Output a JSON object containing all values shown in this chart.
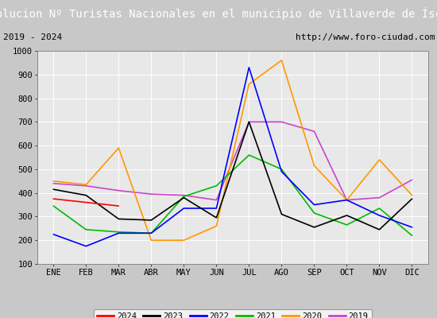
{
  "title": "Evolucion Nº Turistas Nacionales en el municipio de Villaverde de Íscar",
  "subtitle_left": "2019 - 2024",
  "subtitle_right": "http://www.foro-ciudad.com",
  "months": [
    "ENE",
    "FEB",
    "MAR",
    "ABR",
    "MAY",
    "JUN",
    "JUL",
    "AGO",
    "SEP",
    "OCT",
    "NOV",
    "DIC"
  ],
  "ylim": [
    100,
    1000
  ],
  "yticks": [
    100,
    200,
    300,
    400,
    500,
    600,
    700,
    800,
    900,
    1000
  ],
  "series": {
    "2024": {
      "color": "#ff0000",
      "values": [
        375,
        360,
        345,
        null,
        null,
        null,
        null,
        null,
        null,
        null,
        null,
        null
      ]
    },
    "2023": {
      "color": "#000000",
      "values": [
        415,
        390,
        290,
        285,
        380,
        295,
        700,
        310,
        255,
        305,
        245,
        375
      ]
    },
    "2022": {
      "color": "#0000ff",
      "values": [
        225,
        175,
        230,
        230,
        335,
        335,
        930,
        490,
        350,
        370,
        305,
        255
      ]
    },
    "2021": {
      "color": "#00bb00",
      "values": [
        345,
        245,
        235,
        230,
        385,
        430,
        560,
        500,
        315,
        265,
        335,
        220
      ]
    },
    "2020": {
      "color": "#ff9900",
      "values": [
        450,
        435,
        590,
        200,
        200,
        260,
        860,
        960,
        515,
        370,
        540,
        390
      ]
    },
    "2019": {
      "color": "#cc44cc",
      "values": [
        440,
        430,
        410,
        395,
        390,
        370,
        700,
        700,
        660,
        370,
        380,
        455
      ]
    }
  },
  "title_bg": "#4d87c7",
  "title_color": "#ffffff",
  "title_fontsize": 10,
  "subtitle_fontsize": 8,
  "tick_fontsize": 7.5,
  "axis_bg": "#e8e8e8",
  "legend_order": [
    "2024",
    "2023",
    "2022",
    "2021",
    "2020",
    "2019"
  ],
  "fig_bg": "#c8c8c8"
}
